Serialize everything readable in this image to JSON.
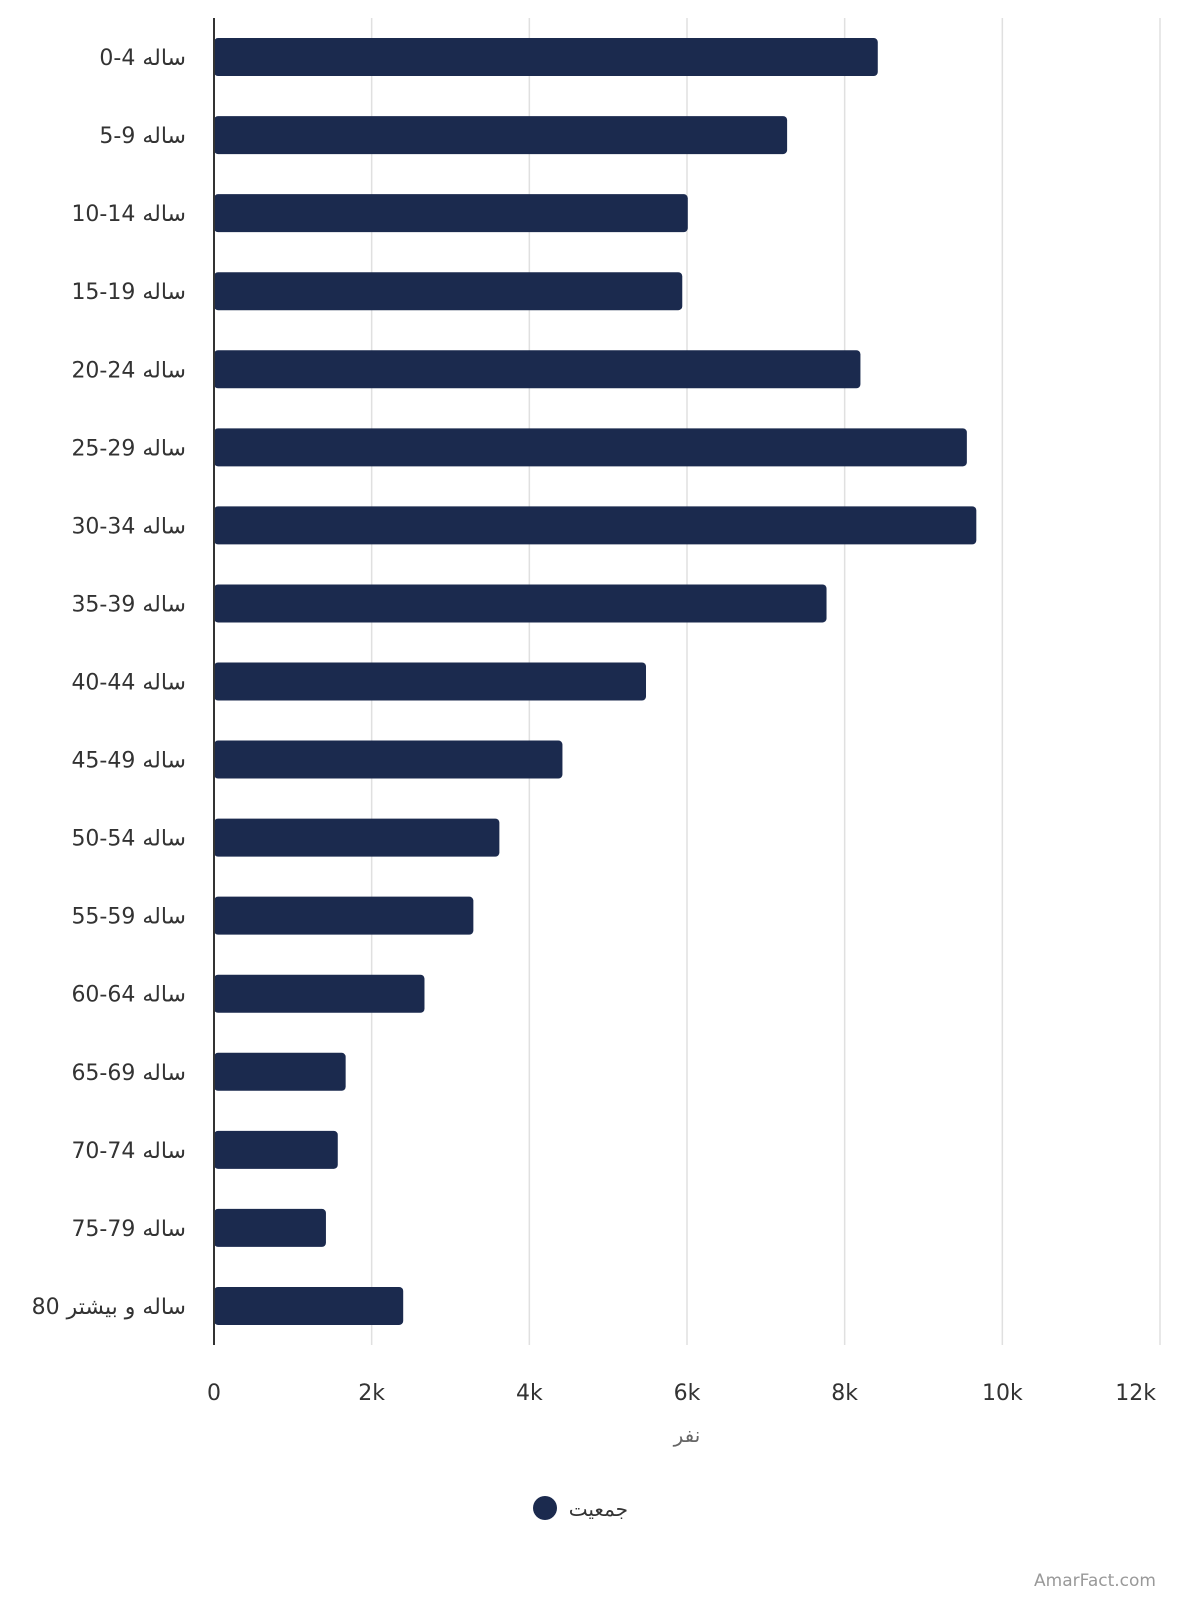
{
  "chart_data": {
    "type": "bar",
    "orientation": "horizontal",
    "categories": [
      "0-4 ساله",
      "5-9 ساله",
      "10-14 ساله",
      "15-19 ساله",
      "20-24 ساله",
      "25-29 ساله",
      "30-34 ساله",
      "35-39 ساله",
      "40-44 ساله",
      "45-49 ساله",
      "50-54 ساله",
      "55-59 ساله",
      "60-64 ساله",
      "65-69 ساله",
      "70-74 ساله",
      "75-79 ساله",
      "80 ساله و بیشتر"
    ],
    "series": [
      {
        "name": "جمعیت",
        "color": "#1b2a4e",
        "values": [
          8420,
          7270,
          6010,
          5940,
          8200,
          9550,
          9670,
          7770,
          5480,
          4420,
          3620,
          3290,
          2670,
          1670,
          1570,
          1420,
          2400
        ]
      }
    ],
    "xlabel": "نفر",
    "ylabel": "",
    "xlim": [
      0,
      12000
    ],
    "xticks": [
      0,
      2000,
      4000,
      6000,
      8000,
      10000,
      12000
    ],
    "xtick_labels": [
      "0",
      "2k",
      "4k",
      "6k",
      "8k",
      "10k",
      "12k"
    ],
    "grid": true,
    "legend": "bottom-center"
  },
  "source": "AmarFact.com"
}
